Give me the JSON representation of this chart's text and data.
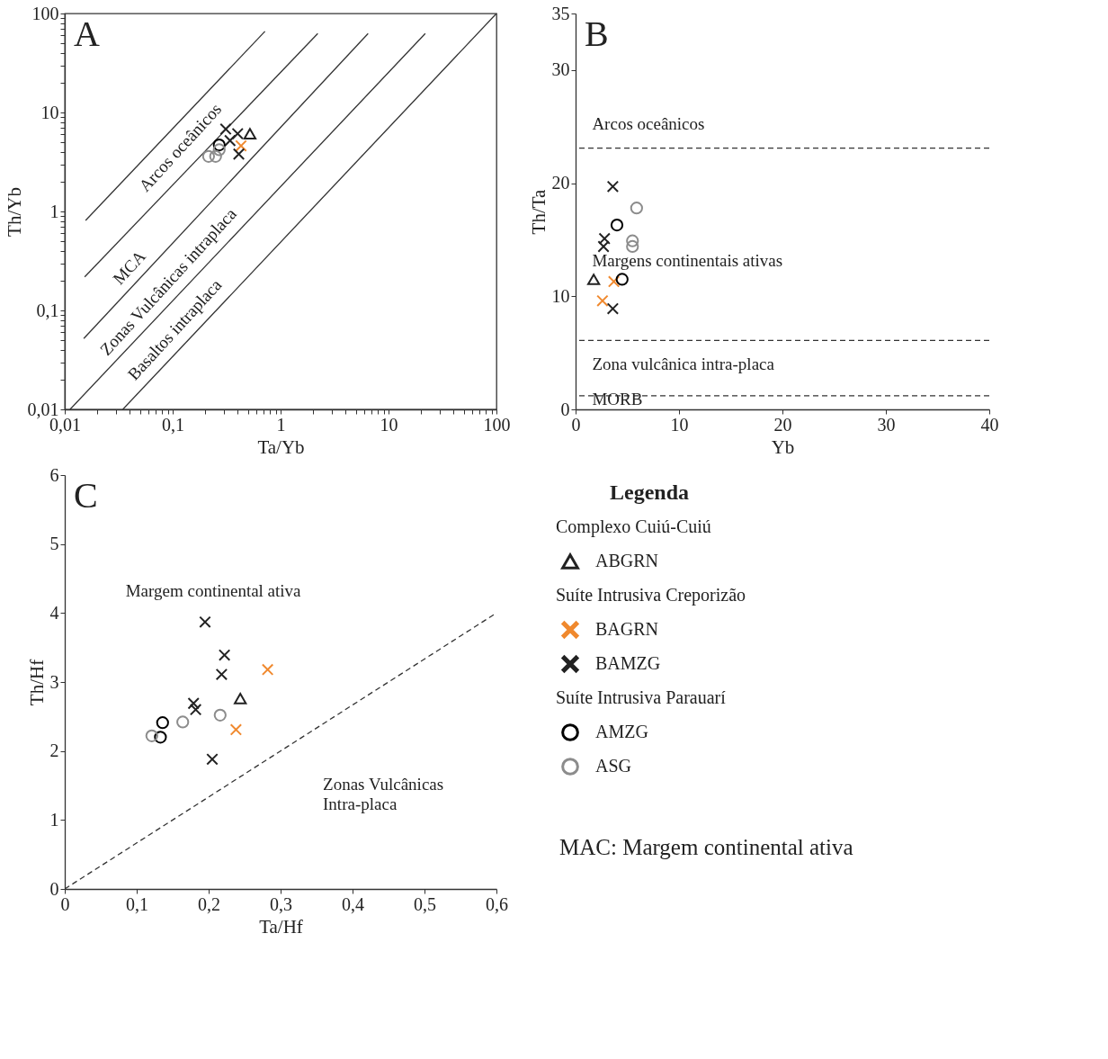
{
  "chart_data": [
    {
      "type": "scatter",
      "title": "A",
      "xlabel": "Ta/Yb",
      "ylabel": "Th/Yb",
      "log": "xy",
      "xlim": [
        0.01,
        100
      ],
      "ylim": [
        0.01,
        100
      ],
      "xticks": [
        {
          "value": 0.01,
          "label": "0,01"
        },
        {
          "value": 0.02,
          "label": null
        },
        {
          "value": 0.03,
          "label": null
        },
        {
          "value": 0.04,
          "label": null
        },
        {
          "value": 0.05,
          "label": null
        },
        {
          "value": 0.06,
          "label": null
        },
        {
          "value": 0.07,
          "label": null
        },
        {
          "value": 0.08,
          "label": null
        },
        {
          "value": 0.09,
          "label": null
        },
        {
          "value": 0.1,
          "label": "0,1"
        },
        {
          "value": 0.2,
          "label": null
        },
        {
          "value": 0.3,
          "label": null
        },
        {
          "value": 0.4,
          "label": null
        },
        {
          "value": 0.5,
          "label": null
        },
        {
          "value": 0.6,
          "label": null
        },
        {
          "value": 0.7,
          "label": null
        },
        {
          "value": 0.8,
          "label": null
        },
        {
          "value": 0.9,
          "label": null
        },
        1,
        {
          "value": 2,
          "label": null
        },
        {
          "value": 3,
          "label": null
        },
        {
          "value": 4,
          "label": null
        },
        {
          "value": 5,
          "label": null
        },
        {
          "value": 6,
          "label": null
        },
        {
          "value": 7,
          "label": null
        },
        {
          "value": 8,
          "label": null
        },
        {
          "value": 9,
          "label": null
        },
        10,
        {
          "value": 20,
          "label": null
        },
        {
          "value": 30,
          "label": null
        },
        {
          "value": 40,
          "label": null
        },
        {
          "value": 50,
          "label": null
        },
        {
          "value": 60,
          "label": null
        },
        {
          "value": 70,
          "label": null
        },
        {
          "value": 80,
          "label": null
        },
        {
          "value": 90,
          "label": null
        },
        100
      ],
      "yticks": [
        {
          "value": 0.01,
          "label": "0,01"
        },
        {
          "value": 0.02,
          "label": null
        },
        {
          "value": 0.03,
          "label": null
        },
        {
          "value": 0.04,
          "label": null
        },
        {
          "value": 0.05,
          "label": null
        },
        {
          "value": 0.06,
          "label": null
        },
        {
          "value": 0.07,
          "label": null
        },
        {
          "value": 0.08,
          "label": null
        },
        {
          "value": 0.09,
          "label": null
        },
        {
          "value": 0.1,
          "label": "0,1"
        },
        {
          "value": 0.2,
          "label": null
        },
        {
          "value": 0.3,
          "label": null
        },
        {
          "value": 0.4,
          "label": null
        },
        {
          "value": 0.5,
          "label": null
        },
        {
          "value": 0.6,
          "label": null
        },
        {
          "value": 0.7,
          "label": null
        },
        {
          "value": 0.8,
          "label": null
        },
        {
          "value": 0.9,
          "label": null
        },
        1,
        {
          "value": 2,
          "label": null
        },
        {
          "value": 3,
          "label": null
        },
        {
          "value": 4,
          "label": null
        },
        {
          "value": 5,
          "label": null
        },
        {
          "value": 6,
          "label": null
        },
        {
          "value": 7,
          "label": null
        },
        {
          "value": 8,
          "label": null
        },
        {
          "value": 9,
          "label": null
        },
        10,
        {
          "value": 20,
          "label": null
        },
        {
          "value": 30,
          "label": null
        },
        {
          "value": 40,
          "label": null
        },
        {
          "value": 50,
          "label": null
        },
        {
          "value": 60,
          "label": null
        },
        {
          "value": 70,
          "label": null
        },
        {
          "value": 80,
          "label": null
        },
        {
          "value": 90,
          "label": null
        },
        100
      ],
      "series": [
        {
          "type": "line",
          "color": "#333333",
          "x": [
            0.0156,
            0.716
          ],
          "values": [
            0.81,
            66
          ]
        },
        {
          "type": "line",
          "color": "#333333",
          "x": [
            0.0153,
            2.21
          ],
          "values": [
            0.218,
            62.7
          ]
        },
        {
          "type": "line",
          "color": "#333333",
          "x": [
            0.015,
            6.47
          ],
          "values": [
            0.052,
            62.7
          ]
        },
        {
          "type": "line",
          "color": "#333333",
          "x": [
            0.0112,
            21.9
          ],
          "values": [
            0.01,
            62.7
          ]
        },
        {
          "type": "line",
          "color": "#333333",
          "x": [
            0.0345,
            100
          ],
          "values": [
            0.01,
            100
          ]
        },
        {
          "marker": "triangle",
          "color": "#222222",
          "x": [
            0.52
          ],
          "values": [
            6.1
          ]
        },
        {
          "marker": "cross",
          "color": "#f0892e",
          "x": [
            0.43
          ],
          "values": [
            4.6
          ]
        },
        {
          "marker": "cross",
          "color": "#222222",
          "x": [
            0.31,
            0.4,
            0.34,
            0.41
          ],
          "values": [
            6.8,
            6.1,
            5.2,
            3.8
          ]
        },
        {
          "marker": "circle",
          "color": "#000000",
          "x": [
            0.27
          ],
          "values": [
            4.7
          ]
        },
        {
          "marker": "circle",
          "color": "#8c8c8c",
          "x": [
            0.215,
            0.25,
            0.27
          ],
          "values": [
            3.6,
            3.6,
            4.2
          ]
        }
      ],
      "annotations": [
        "Arcos oceânicos",
        "MCA",
        "Zonas Vulcânicas intraplaca",
        "Basaltos intraplaca"
      ]
    },
    {
      "type": "scatter",
      "title": "B",
      "xlabel": "Yb",
      "ylabel": "Th/Ta",
      "xlim": [
        0,
        40
      ],
      "ylim": [
        0,
        35
      ],
      "xticks": [
        0,
        10,
        20,
        30,
        40
      ],
      "yticks": [
        0,
        10,
        20,
        30,
        35
      ],
      "ref_lines": [
        {
          "axis": "y",
          "value": 23.1,
          "line_style": "dashed",
          "color": "#333333"
        },
        {
          "axis": "y",
          "value": 6.1,
          "line_style": "dashed",
          "color": "#333333"
        },
        {
          "axis": "y",
          "value": 1.2,
          "line_style": "dashed",
          "color": "#333333"
        }
      ],
      "series": [
        {
          "marker": "triangle",
          "color": "#222222",
          "x": [
            1.75
          ],
          "values": [
            11.5
          ]
        },
        {
          "marker": "cross",
          "color": "#f0892e",
          "x": [
            3.7,
            2.6
          ],
          "values": [
            11.3,
            9.6
          ]
        },
        {
          "marker": "cross",
          "color": "#222222",
          "x": [
            3.6,
            2.8,
            2.7,
            3.6
          ],
          "values": [
            19.7,
            15.1,
            14.4,
            8.9
          ]
        },
        {
          "marker": "circle",
          "color": "#000000",
          "x": [
            4.0,
            4.5
          ],
          "values": [
            16.3,
            11.5
          ]
        },
        {
          "marker": "circle",
          "color": "#8c8c8c",
          "x": [
            5.9,
            5.5,
            5.5
          ],
          "values": [
            17.8,
            14.9,
            14.4
          ]
        }
      ],
      "annotations": [
        "Arcos oceânicos",
        "Margens continentais ativas",
        "Zona vulcânica intra-placa",
        "MORB"
      ]
    },
    {
      "type": "scatter",
      "title": "C",
      "xlabel": "Ta/Hf",
      "ylabel": "Th/Hf",
      "xlim": [
        0,
        0.6
      ],
      "ylim": [
        0,
        6
      ],
      "xticks": [
        0,
        {
          "value": 0.1,
          "label": "0,1"
        },
        {
          "value": 0.2,
          "label": "0,2"
        },
        {
          "value": 0.3,
          "label": "0,3"
        },
        {
          "value": 0.4,
          "label": "0,4"
        },
        {
          "value": 0.5,
          "label": "0,5"
        },
        {
          "value": 0.6,
          "label": "0,6"
        }
      ],
      "yticks": [
        0,
        1,
        2,
        3,
        4,
        5,
        6
      ],
      "legend": "right",
      "legend_title": "Legenda",
      "series": [
        {
          "type": "line",
          "color": "#333333",
          "line_style": "dashed",
          "x": [
            0,
            0.6
          ],
          "values": [
            0,
            4.0
          ]
        },
        {
          "name": "ABGRN",
          "marker": "triangle",
          "color": "#222222",
          "x": [
            0.244
          ],
          "values": [
            2.76
          ]
        },
        {
          "name": "BAGRN",
          "marker": "cross",
          "color": "#f0892e",
          "x": [
            0.282,
            0.238
          ],
          "values": [
            3.18,
            2.31
          ]
        },
        {
          "name": "BAMZG",
          "marker": "cross",
          "color": "#222222",
          "x": [
            0.195,
            0.222,
            0.218,
            0.179,
            0.182,
            0.205
          ],
          "values": [
            3.87,
            3.39,
            3.11,
            2.69,
            2.6,
            1.88
          ]
        },
        {
          "name": "AMZG",
          "marker": "circle",
          "color": "#000000",
          "x": [
            0.136,
            0.133
          ],
          "values": [
            2.41,
            2.2
          ]
        },
        {
          "name": "ASG",
          "marker": "circle",
          "color": "#8c8c8c",
          "x": [
            0.216,
            0.164,
            0.121
          ],
          "values": [
            2.52,
            2.42,
            2.22
          ]
        }
      ],
      "annotations": [
        "Margem continental ativa",
        "Zonas Vulcânicas\nIntra-placa",
        "Complexo Cuiú-Cuiú",
        "Suíte Intrusiva Creporizão",
        "Suíte Intrusiva Parauarí",
        "MAC: Margem continental ativa"
      ]
    }
  ]
}
